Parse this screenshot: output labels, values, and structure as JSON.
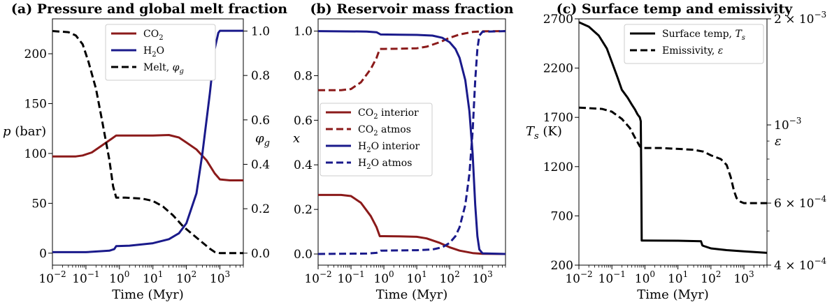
{
  "chart_data": [
    {
      "type": "line",
      "title": "(a) Pressure and global melt fraction",
      "xlabel": "Time (Myr)",
      "xscale": "log",
      "xlim": [
        0.01,
        5000
      ],
      "x_ticks": [
        {
          "v": 0.01,
          "b": "10",
          "e": "−2"
        },
        {
          "v": 0.1,
          "b": "10",
          "e": "−1"
        },
        {
          "v": 1,
          "b": "10",
          "e": "0"
        },
        {
          "v": 10,
          "b": "10",
          "e": "1"
        },
        {
          "v": 100,
          "b": "10",
          "e": "2"
        },
        {
          "v": 1000,
          "b": "10",
          "e": "3"
        }
      ],
      "ylabel": "p (bar)",
      "ylim": [
        -12,
        235
      ],
      "y_ticks": [
        "0",
        "50",
        "100",
        "150",
        "200"
      ],
      "y2label": "φg",
      "y2lim": [
        -0.054,
        1.055
      ],
      "y2_ticks": [
        "0.0",
        "0.2",
        "0.4",
        "0.6",
        "0.8",
        "1.0"
      ],
      "legend_position": "top-center",
      "colors": {
        "co2": "#8b1a1a",
        "h2o": "#1a1a8b",
        "melt": "#000000"
      },
      "series": [
        {
          "name": "CO2",
          "label_base": "CO",
          "label_sub": "2",
          "axis": "left",
          "style": "solid",
          "color": "#8b1a1a",
          "x": [
            0.01,
            0.05,
            0.08,
            0.15,
            0.3,
            0.6,
            0.8,
            2,
            10,
            30,
            60,
            100,
            200,
            400,
            700,
            1000,
            2000,
            5000
          ],
          "y": [
            97,
            97,
            98,
            101,
            108,
            115,
            118,
            118,
            118,
            118.5,
            116,
            111,
            104,
            93,
            80,
            74,
            73,
            73
          ]
        },
        {
          "name": "H2O",
          "label_base": "H",
          "label_sub": "2",
          "label_tail": "O",
          "axis": "left",
          "style": "solid",
          "color": "#1a1a8b",
          "x": [
            0.01,
            0.1,
            0.5,
            0.7,
            0.8,
            2,
            10,
            30,
            60,
            100,
            200,
            300,
            500,
            700,
            900,
            1000,
            5000
          ],
          "y": [
            1,
            1,
            2.5,
            4,
            7,
            7.5,
            10,
            14,
            20,
            30,
            60,
            100,
            160,
            205,
            221,
            223,
            223
          ]
        },
        {
          "name": "Melt",
          "label_base": "Melt, ",
          "label_tail": "φg",
          "axis": "right",
          "style": "dashed",
          "color": "#000000",
          "x": [
            0.01,
            0.03,
            0.05,
            0.08,
            0.12,
            0.2,
            0.3,
            0.5,
            0.65,
            0.8,
            1.5,
            5,
            10,
            20,
            40,
            80,
            200,
            500,
            700,
            1000,
            5000
          ],
          "y": [
            1.0,
            0.995,
            0.98,
            0.94,
            0.86,
            0.74,
            0.6,
            0.42,
            0.3,
            0.25,
            0.25,
            0.245,
            0.235,
            0.21,
            0.17,
            0.12,
            0.07,
            0.02,
            0.005,
            0.0,
            0.0
          ]
        }
      ]
    },
    {
      "type": "line",
      "title": "(b) Reservoir mass fraction",
      "xlabel": "Time (Myr)",
      "xscale": "log",
      "xlim": [
        0.01,
        5000
      ],
      "x_ticks": [
        {
          "v": 0.01,
          "b": "10",
          "e": "−2"
        },
        {
          "v": 0.1,
          "b": "10",
          "e": "−1"
        },
        {
          "v": 1,
          "b": "10",
          "e": "0"
        },
        {
          "v": 10,
          "b": "10",
          "e": "1"
        },
        {
          "v": 100,
          "b": "10",
          "e": "2"
        },
        {
          "v": 1000,
          "b": "10",
          "e": "3"
        }
      ],
      "ylabel": "x",
      "ylim": [
        -0.05,
        1.055
      ],
      "y_ticks": [
        "0.0",
        "0.2",
        "0.4",
        "0.6",
        "0.8",
        "1.0"
      ],
      "legend_position": "center-left",
      "series": [
        {
          "name": "CO2 interior",
          "label_base": "CO",
          "label_sub": "2",
          "label_tail": " interior",
          "style": "solid",
          "color": "#8b1a1a",
          "x": [
            0.01,
            0.05,
            0.1,
            0.2,
            0.4,
            0.6,
            0.75,
            1,
            3,
            10,
            20,
            50,
            100,
            200,
            500,
            1000,
            5000
          ],
          "y": [
            0.265,
            0.265,
            0.26,
            0.23,
            0.17,
            0.12,
            0.08,
            0.08,
            0.079,
            0.077,
            0.07,
            0.05,
            0.03,
            0.015,
            0.004,
            0.001,
            0.0
          ]
        },
        {
          "name": "CO2 atmos",
          "label_base": "CO",
          "label_sub": "2",
          "label_tail": " atmos",
          "style": "dashed",
          "color": "#8b1a1a",
          "x": [
            0.01,
            0.05,
            0.1,
            0.2,
            0.4,
            0.6,
            0.75,
            1,
            3,
            10,
            20,
            50,
            100,
            200,
            500,
            1000,
            5000
          ],
          "y": [
            0.735,
            0.735,
            0.74,
            0.77,
            0.83,
            0.88,
            0.92,
            0.92,
            0.921,
            0.923,
            0.93,
            0.95,
            0.97,
            0.985,
            0.996,
            0.999,
            1.0
          ]
        },
        {
          "name": "H2O interior",
          "label_base": "H",
          "label_sub": "2",
          "label_tail": "O interior",
          "style": "solid",
          "color": "#1a1a8b",
          "x": [
            0.01,
            0.3,
            0.6,
            0.8,
            3,
            10,
            30,
            60,
            100,
            150,
            200,
            300,
            400,
            500,
            600,
            700,
            800,
            1000,
            5000
          ],
          "y": [
            1.0,
            0.998,
            0.995,
            0.985,
            0.984,
            0.983,
            0.98,
            0.97,
            0.95,
            0.92,
            0.88,
            0.78,
            0.64,
            0.45,
            0.22,
            0.08,
            0.02,
            0.003,
            0.0
          ]
        },
        {
          "name": "H2O atmos",
          "label_base": "H",
          "label_sub": "2",
          "label_tail": "O atmos",
          "style": "dashed",
          "color": "#1a1a8b",
          "x": [
            0.01,
            0.3,
            0.6,
            0.8,
            3,
            10,
            30,
            60,
            100,
            150,
            200,
            300,
            400,
            500,
            600,
            700,
            800,
            1000,
            5000
          ],
          "y": [
            0.0,
            0.002,
            0.005,
            0.015,
            0.016,
            0.017,
            0.02,
            0.03,
            0.05,
            0.08,
            0.12,
            0.22,
            0.36,
            0.55,
            0.78,
            0.92,
            0.98,
            0.997,
            1.0
          ]
        }
      ]
    },
    {
      "type": "line",
      "title": "(c) Surface temp and emissivity",
      "xlabel": "Time (Myr)",
      "xscale": "log",
      "xlim": [
        0.01,
        5000
      ],
      "x_ticks": [
        {
          "v": 0.01,
          "b": "10",
          "e": "−2"
        },
        {
          "v": 0.1,
          "b": "10",
          "e": "−1"
        },
        {
          "v": 1,
          "b": "10",
          "e": "0"
        },
        {
          "v": 10,
          "b": "10",
          "e": "1"
        },
        {
          "v": 100,
          "b": "10",
          "e": "2"
        },
        {
          "v": 1000,
          "b": "10",
          "e": "3"
        }
      ],
      "ylabel": "Ts (K)",
      "ylim": [
        200,
        2700
      ],
      "y_ticks": [
        "200",
        "700",
        "1200",
        "1700",
        "2200",
        "2700"
      ],
      "y2label": "ε",
      "y2scale": "log",
      "y2lim": [
        0.0004,
        0.002
      ],
      "y2_ticks": [
        {
          "v": 0.0004,
          "m": "4 × 10",
          "e": "−4"
        },
        {
          "v": 0.0006,
          "m": "6 × 10",
          "e": "−4"
        },
        {
          "v": 0.001,
          "m": "10",
          "e": "−3"
        },
        {
          "v": 0.002,
          "m": "2 × 10",
          "e": "−3"
        }
      ],
      "legend_position": "top-right",
      "series": [
        {
          "name": "Surface temp",
          "label_base": "Surface temp, ",
          "label_tail": "Ts",
          "axis": "left",
          "style": "solid",
          "color": "#000000",
          "x": [
            0.01,
            0.02,
            0.04,
            0.07,
            0.1,
            0.15,
            0.2,
            0.3,
            0.4,
            0.5,
            0.6,
            0.7,
            0.75,
            0.78,
            0.8,
            1,
            10,
            50,
            55,
            60,
            100,
            300,
            1000,
            5000
          ],
          "y": [
            2665,
            2620,
            2530,
            2400,
            2260,
            2100,
            1980,
            1900,
            1830,
            1780,
            1730,
            1700,
            1660,
            1000,
            450,
            450,
            448,
            443,
            400,
            395,
            370,
            352,
            340,
            325
          ]
        },
        {
          "name": "Emissivity",
          "label_base": "Emissivity, ",
          "label_tail": "ε",
          "axis": "right",
          "style": "dashed",
          "color": "#000000",
          "x": [
            0.01,
            0.05,
            0.1,
            0.2,
            0.35,
            0.5,
            0.7,
            0.8,
            1,
            3,
            10,
            30,
            60,
            100,
            200,
            300,
            400,
            500,
            600,
            800,
            1000,
            5000
          ],
          "y": [
            0.00112,
            0.00111,
            0.00109,
            0.00104,
            0.00098,
            0.00092,
            0.00087,
            0.00086,
            0.00086,
            0.00086,
            0.000855,
            0.00085,
            0.00084,
            0.00082,
            0.0008,
            0.00077,
            0.00071,
            0.00065,
            0.00062,
            0.000605,
            0.0006,
            0.0006
          ]
        }
      ]
    }
  ]
}
